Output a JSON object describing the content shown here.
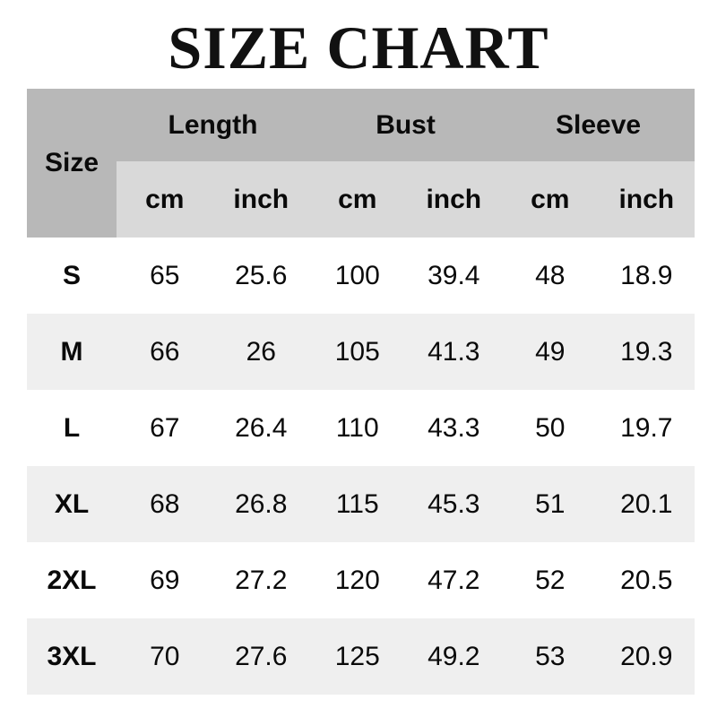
{
  "title": "SIZE CHART",
  "table": {
    "corner_label": "Size",
    "groups": [
      {
        "label": "Length"
      },
      {
        "label": "Bust"
      },
      {
        "label": "Sleeve"
      }
    ],
    "units": [
      "cm",
      "inch",
      "cm",
      "inch",
      "cm",
      "inch"
    ],
    "rows": [
      {
        "size": "S",
        "values": [
          "65",
          "25.6",
          "100",
          "39.4",
          "48",
          "18.9"
        ]
      },
      {
        "size": "M",
        "values": [
          "66",
          "26",
          "105",
          "41.3",
          "49",
          "19.3"
        ]
      },
      {
        "size": "L",
        "values": [
          "67",
          "26.4",
          "110",
          "43.3",
          "50",
          "19.7"
        ]
      },
      {
        "size": "XL",
        "values": [
          "68",
          "26.8",
          "115",
          "45.3",
          "51",
          "20.1"
        ]
      },
      {
        "size": "2XL",
        "values": [
          "69",
          "27.2",
          "120",
          "47.2",
          "52",
          "20.5"
        ]
      },
      {
        "size": "3XL",
        "values": [
          "70",
          "27.6",
          "125",
          "49.2",
          "53",
          "20.9"
        ]
      }
    ]
  },
  "colors": {
    "header-gray": "#b8b8b8",
    "units-gray": "#d9d9d9",
    "stripe-gray": "#efefef",
    "text": "#0a0a0a",
    "background": "#ffffff"
  },
  "chart_data": {
    "type": "table",
    "title": "SIZE CHART",
    "column_groups": [
      "Length",
      "Bust",
      "Sleeve"
    ],
    "columns": [
      "Size",
      "Length cm",
      "Length inch",
      "Bust cm",
      "Bust inch",
      "Sleeve cm",
      "Sleeve inch"
    ],
    "rows": [
      [
        "S",
        65,
        25.6,
        100,
        39.4,
        48,
        18.9
      ],
      [
        "M",
        66,
        26,
        105,
        41.3,
        49,
        19.3
      ],
      [
        "L",
        67,
        26.4,
        110,
        43.3,
        50,
        19.7
      ],
      [
        "XL",
        68,
        26.8,
        115,
        45.3,
        51,
        20.1
      ],
      [
        "2XL",
        69,
        27.2,
        120,
        47.2,
        52,
        20.5
      ],
      [
        "3XL",
        70,
        27.6,
        125,
        49.2,
        53,
        20.9
      ]
    ]
  }
}
